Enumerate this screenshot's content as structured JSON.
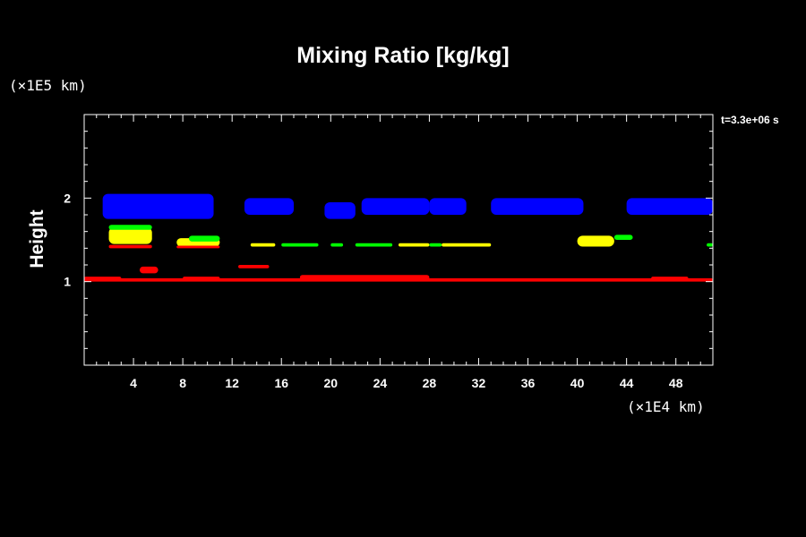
{
  "chart_data": {
    "type": "heatmap",
    "title": "Mixing Ratio [kg/kg]",
    "ylabel": "Height",
    "xlabel": "",
    "x_unit": "(×1E4 km)",
    "y_unit": "(×1E5 km)",
    "time_label": "t=3.3e+06 s",
    "xlim": [
      0,
      51
    ],
    "ylim": [
      0,
      3
    ],
    "x_ticks": [
      4,
      8,
      12,
      16,
      20,
      24,
      28,
      32,
      36,
      40,
      44,
      48
    ],
    "x_tick_labels": [
      "4",
      "8",
      "12",
      "16",
      "20",
      "24",
      "28",
      "32",
      "36",
      "40",
      "44",
      "48"
    ],
    "y_ticks": [
      1,
      2
    ],
    "y_tick_labels": [
      "1",
      "2"
    ],
    "grid": false,
    "colors": {
      "background": "#000000",
      "axes": "#ffffff",
      "blue": "#0000ff",
      "green": "#00ff00",
      "yellow": "#ffff00",
      "red": "#ff0000"
    },
    "regions": [
      {
        "color": "blue",
        "x": [
          1.5,
          10.5
        ],
        "y": [
          1.75,
          2.05
        ]
      },
      {
        "color": "blue",
        "x": [
          13,
          17
        ],
        "y": [
          1.8,
          2.0
        ]
      },
      {
        "color": "blue",
        "x": [
          19.5,
          22
        ],
        "y": [
          1.75,
          1.95
        ]
      },
      {
        "color": "blue",
        "x": [
          22.5,
          28
        ],
        "y": [
          1.8,
          2.0
        ]
      },
      {
        "color": "blue",
        "x": [
          28,
          31
        ],
        "y": [
          1.8,
          2.0
        ]
      },
      {
        "color": "blue",
        "x": [
          33,
          40.5
        ],
        "y": [
          1.8,
          2.0
        ]
      },
      {
        "color": "blue",
        "x": [
          44,
          51
        ],
        "y": [
          1.8,
          2.0
        ]
      },
      {
        "color": "yellow",
        "x": [
          2,
          5.5
        ],
        "y": [
          1.45,
          1.65
        ]
      },
      {
        "color": "green",
        "x": [
          2,
          5.5
        ],
        "y": [
          1.62,
          1.68
        ]
      },
      {
        "color": "yellow",
        "x": [
          7.5,
          11
        ],
        "y": [
          1.42,
          1.52
        ]
      },
      {
        "color": "green",
        "x": [
          8.5,
          11
        ],
        "y": [
          1.48,
          1.55
        ]
      },
      {
        "color": "yellow",
        "x": [
          13.5,
          15.5
        ],
        "y": [
          1.42,
          1.46
        ]
      },
      {
        "color": "green",
        "x": [
          16,
          19
        ],
        "y": [
          1.42,
          1.46
        ]
      },
      {
        "color": "green",
        "x": [
          20,
          21
        ],
        "y": [
          1.42,
          1.46
        ]
      },
      {
        "color": "green",
        "x": [
          22,
          25
        ],
        "y": [
          1.42,
          1.46
        ]
      },
      {
        "color": "yellow",
        "x": [
          25.5,
          28
        ],
        "y": [
          1.42,
          1.46
        ]
      },
      {
        "color": "green",
        "x": [
          28,
          29
        ],
        "y": [
          1.42,
          1.46
        ]
      },
      {
        "color": "yellow",
        "x": [
          29,
          33
        ],
        "y": [
          1.42,
          1.46
        ]
      },
      {
        "color": "yellow",
        "x": [
          40,
          43
        ],
        "y": [
          1.42,
          1.55
        ]
      },
      {
        "color": "green",
        "x": [
          43,
          44.5
        ],
        "y": [
          1.5,
          1.56
        ]
      },
      {
        "color": "green",
        "x": [
          50.5,
          51
        ],
        "y": [
          1.42,
          1.46
        ]
      },
      {
        "color": "red",
        "x": [
          2,
          5.5
        ],
        "y": [
          1.4,
          1.44
        ]
      },
      {
        "color": "red",
        "x": [
          7.5,
          11
        ],
        "y": [
          1.4,
          1.43
        ]
      },
      {
        "color": "red",
        "x": [
          4.5,
          6
        ],
        "y": [
          1.1,
          1.18
        ]
      },
      {
        "color": "red",
        "x": [
          12.5,
          15
        ],
        "y": [
          1.16,
          1.2
        ]
      },
      {
        "color": "red",
        "x": [
          0,
          51
        ],
        "y": [
          1.0,
          1.04
        ]
      },
      {
        "color": "red",
        "x": [
          0,
          3
        ],
        "y": [
          1.02,
          1.06
        ]
      },
      {
        "color": "red",
        "x": [
          8,
          11
        ],
        "y": [
          1.02,
          1.06
        ]
      },
      {
        "color": "red",
        "x": [
          17.5,
          28
        ],
        "y": [
          1.02,
          1.08
        ]
      },
      {
        "color": "red",
        "x": [
          46,
          49
        ],
        "y": [
          1.02,
          1.06
        ]
      }
    ]
  }
}
